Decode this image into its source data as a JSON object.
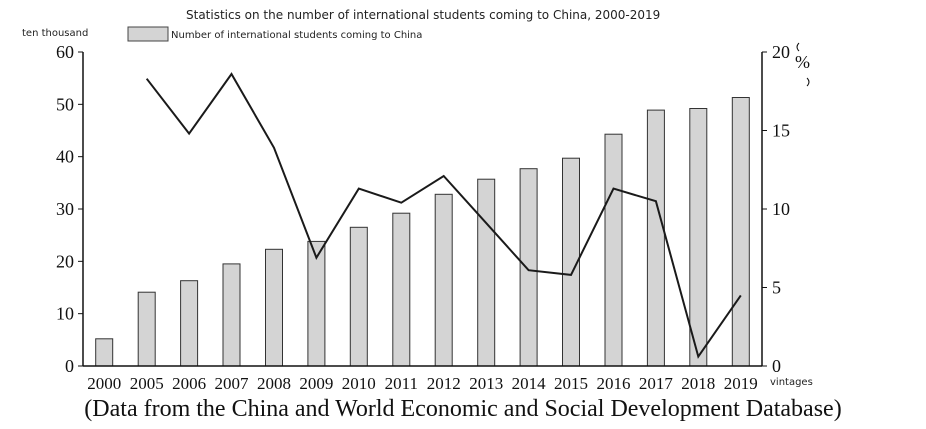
{
  "chart_data": {
    "type": "bar",
    "title": "Statistics on the number of international students coming to China, 2000-2019",
    "ylabel_left": "ten thousand",
    "ylabel_right": "%",
    "xlabel": "vintages",
    "categories": [
      "2000",
      "2005",
      "2006",
      "2007",
      "2008",
      "2009",
      "2010",
      "2011",
      "2012",
      "2013",
      "2014",
      "2015",
      "2016",
      "2017",
      "2018",
      "2019"
    ],
    "ylim_left": [
      0,
      60
    ],
    "yticks_left": [
      0,
      10,
      20,
      30,
      40,
      50,
      60
    ],
    "ylim_right": [
      0,
      20
    ],
    "yticks_right": [
      0,
      5,
      10,
      15,
      20
    ],
    "legend": {
      "placement": "top-left",
      "label": "Number of international students coming to China"
    },
    "grid": false,
    "series": [
      {
        "name": "Number of international students coming to China",
        "kind": "bar",
        "axis": "left",
        "color": "#d4d4d4",
        "values": [
          5.2,
          14.1,
          16.3,
          19.5,
          22.3,
          23.8,
          26.5,
          29.2,
          32.8,
          35.7,
          37.7,
          39.7,
          44.3,
          48.9,
          49.2,
          51.3
        ]
      },
      {
        "kind": "line",
        "axis": "right",
        "color": "#1a1a1a",
        "values": [
          null,
          18.3,
          14.8,
          18.6,
          13.9,
          6.9,
          11.3,
          10.4,
          12.1,
          9.1,
          6.1,
          5.8,
          11.3,
          10.5,
          0.6,
          4.5
        ]
      }
    ]
  },
  "caption": "(Data from the China and World Economic and Social Development Database)"
}
